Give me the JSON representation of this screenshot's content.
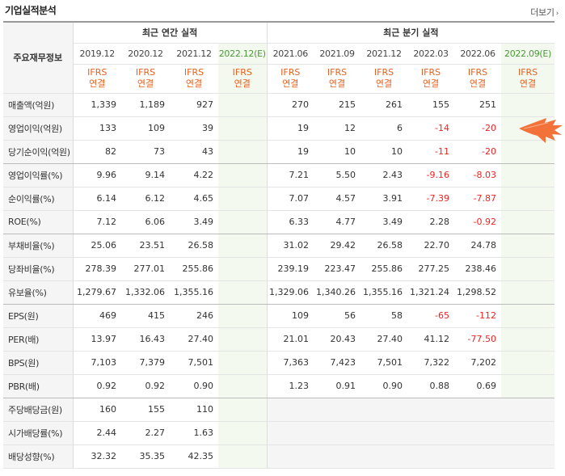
{
  "header": {
    "title": "기업실적분석",
    "more_label": "더보기"
  },
  "table": {
    "corner_label": "주요재무정보",
    "annual_group": "최근 연간 실적",
    "quarter_group": "최근 분기 실적",
    "annual_periods": [
      "2019.12",
      "2020.12",
      "2021.12",
      "2022.12(E)"
    ],
    "quarter_periods": [
      "2021.06",
      "2021.09",
      "2021.12",
      "2022.03",
      "2022.06",
      "2022.09(E)"
    ],
    "basis": "IFRS 연결",
    "rows": [
      {
        "label": "매출액(억원)",
        "annual": [
          "1,339",
          "1,189",
          "927",
          ""
        ],
        "quarter": [
          "270",
          "215",
          "261",
          "155",
          "251",
          ""
        ]
      },
      {
        "label": "영업이익(억원)",
        "annual": [
          "133",
          "109",
          "39",
          ""
        ],
        "quarter": [
          "19",
          "12",
          "6",
          "-14",
          "-20",
          ""
        ]
      },
      {
        "label": "당기순이익(억원)",
        "annual": [
          "82",
          "73",
          "43",
          ""
        ],
        "quarter": [
          "19",
          "10",
          "10",
          "-11",
          "-20",
          ""
        ]
      },
      {
        "label": "영업이익률(%)",
        "annual": [
          "9.96",
          "9.14",
          "4.22",
          ""
        ],
        "quarter": [
          "7.21",
          "5.50",
          "2.43",
          "-9.16",
          "-8.03",
          ""
        ]
      },
      {
        "label": "순이익률(%)",
        "annual": [
          "6.14",
          "6.12",
          "4.65",
          ""
        ],
        "quarter": [
          "7.07",
          "4.57",
          "3.91",
          "-7.39",
          "-7.87",
          ""
        ]
      },
      {
        "label": "ROE(%)",
        "annual": [
          "7.12",
          "6.06",
          "3.49",
          ""
        ],
        "quarter": [
          "6.33",
          "4.77",
          "3.49",
          "2.28",
          "-0.92",
          ""
        ]
      },
      {
        "label": "부채비율(%)",
        "annual": [
          "25.06",
          "23.51",
          "26.58",
          ""
        ],
        "quarter": [
          "31.02",
          "29.42",
          "26.58",
          "22.70",
          "24.78",
          ""
        ]
      },
      {
        "label": "당좌비율(%)",
        "annual": [
          "278.39",
          "277.01",
          "255.86",
          ""
        ],
        "quarter": [
          "239.19",
          "223.47",
          "255.86",
          "277.25",
          "238.46",
          ""
        ]
      },
      {
        "label": "유보율(%)",
        "annual": [
          "1,279.67",
          "1,332.06",
          "1,355.16",
          ""
        ],
        "quarter": [
          "1,329.06",
          "1,340.26",
          "1,355.16",
          "1,321.24",
          "1,298.52",
          ""
        ]
      },
      {
        "label": "EPS(원)",
        "annual": [
          "469",
          "415",
          "246",
          ""
        ],
        "quarter": [
          "109",
          "56",
          "58",
          "-65",
          "-112",
          ""
        ]
      },
      {
        "label": "PER(배)",
        "annual": [
          "13.97",
          "16.43",
          "27.40",
          ""
        ],
        "quarter": [
          "21.01",
          "20.43",
          "27.40",
          "41.12",
          "-77.50",
          ""
        ]
      },
      {
        "label": "BPS(원)",
        "annual": [
          "7,103",
          "7,379",
          "7,501",
          ""
        ],
        "quarter": [
          "7,363",
          "7,423",
          "7,501",
          "7,322",
          "7,202",
          ""
        ]
      },
      {
        "label": "PBR(배)",
        "annual": [
          "0.92",
          "0.92",
          "0.90",
          ""
        ],
        "quarter": [
          "1.23",
          "0.91",
          "0.90",
          "0.88",
          "0.69",
          ""
        ]
      },
      {
        "label": "주당배당금(원)",
        "annual": [
          "160",
          "155",
          "110",
          ""
        ],
        "quarter": [
          "",
          "",
          "",
          "",
          "",
          ""
        ]
      },
      {
        "label": "시가배당률(%)",
        "annual": [
          "2.44",
          "2.27",
          "1.63",
          ""
        ],
        "quarter": [
          "",
          "",
          "",
          "",
          "",
          ""
        ]
      },
      {
        "label": "배당성향(%)",
        "annual": [
          "32.32",
          "35.35",
          "42.35",
          ""
        ],
        "quarter": [
          "",
          "",
          "",
          "",
          "",
          ""
        ]
      }
    ]
  },
  "colors": {
    "ifrs": "#e8601c",
    "estimate": "#4a9a36",
    "negative": "#e22222",
    "pointer": "#f26a2e"
  }
}
